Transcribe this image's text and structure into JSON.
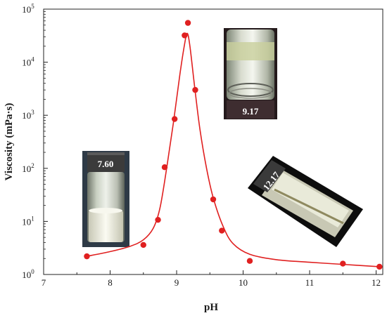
{
  "chart_data": {
    "type": "scatter",
    "xlabel": "pH",
    "ylabel": "Viscosity (mPa·s)",
    "xlim": [
      7,
      12.1
    ],
    "ylim_log10": [
      0,
      5
    ],
    "y_scale": "log",
    "grid": false,
    "x_ticks": [
      "7",
      "8",
      "9",
      "10",
      "11",
      "12"
    ],
    "y_ticks": [
      {
        "base": "10",
        "exp": "0"
      },
      {
        "base": "10",
        "exp": "1"
      },
      {
        "base": "10",
        "exp": "2"
      },
      {
        "base": "10",
        "exp": "3"
      },
      {
        "base": "10",
        "exp": "4"
      },
      {
        "base": "10",
        "exp": "5"
      }
    ],
    "series": [
      {
        "color": "#e02020",
        "points": [
          {
            "x": 7.65,
            "y": 2.2
          },
          {
            "x": 8.5,
            "y": 3.6
          },
          {
            "x": 8.72,
            "y": 10.7
          },
          {
            "x": 8.82,
            "y": 105
          },
          {
            "x": 8.97,
            "y": 850
          },
          {
            "x": 9.12,
            "y": 32000
          },
          {
            "x": 9.17,
            "y": 55000
          },
          {
            "x": 9.28,
            "y": 3000
          },
          {
            "x": 9.55,
            "y": 26
          },
          {
            "x": 9.68,
            "y": 6.7
          },
          {
            "x": 10.1,
            "y": 1.8
          },
          {
            "x": 11.5,
            "y": 1.6
          },
          {
            "x": 12.05,
            "y": 1.4
          }
        ],
        "fit_curve": [
          {
            "x": 7.65,
            "y": 2.2
          },
          {
            "x": 8.0,
            "y": 2.7
          },
          {
            "x": 8.3,
            "y": 3.4
          },
          {
            "x": 8.5,
            "y": 4.5
          },
          {
            "x": 8.65,
            "y": 7.5
          },
          {
            "x": 8.75,
            "y": 18
          },
          {
            "x": 8.85,
            "y": 100
          },
          {
            "x": 8.95,
            "y": 700
          },
          {
            "x": 9.05,
            "y": 6000
          },
          {
            "x": 9.12,
            "y": 22000
          },
          {
            "x": 9.16,
            "y": 35000
          },
          {
            "x": 9.2,
            "y": 20000
          },
          {
            "x": 9.27,
            "y": 3500
          },
          {
            "x": 9.35,
            "y": 550
          },
          {
            "x": 9.45,
            "y": 100
          },
          {
            "x": 9.55,
            "y": 28
          },
          {
            "x": 9.7,
            "y": 8
          },
          {
            "x": 9.85,
            "y": 3.8
          },
          {
            "x": 10.1,
            "y": 2.4
          },
          {
            "x": 10.5,
            "y": 1.9
          },
          {
            "x": 11.0,
            "y": 1.7
          },
          {
            "x": 11.5,
            "y": 1.55
          },
          {
            "x": 12.05,
            "y": 1.4
          }
        ]
      }
    ],
    "photos": [
      {
        "label": "7.60"
      },
      {
        "label": "9.17"
      },
      {
        "label": "12.17"
      }
    ]
  }
}
